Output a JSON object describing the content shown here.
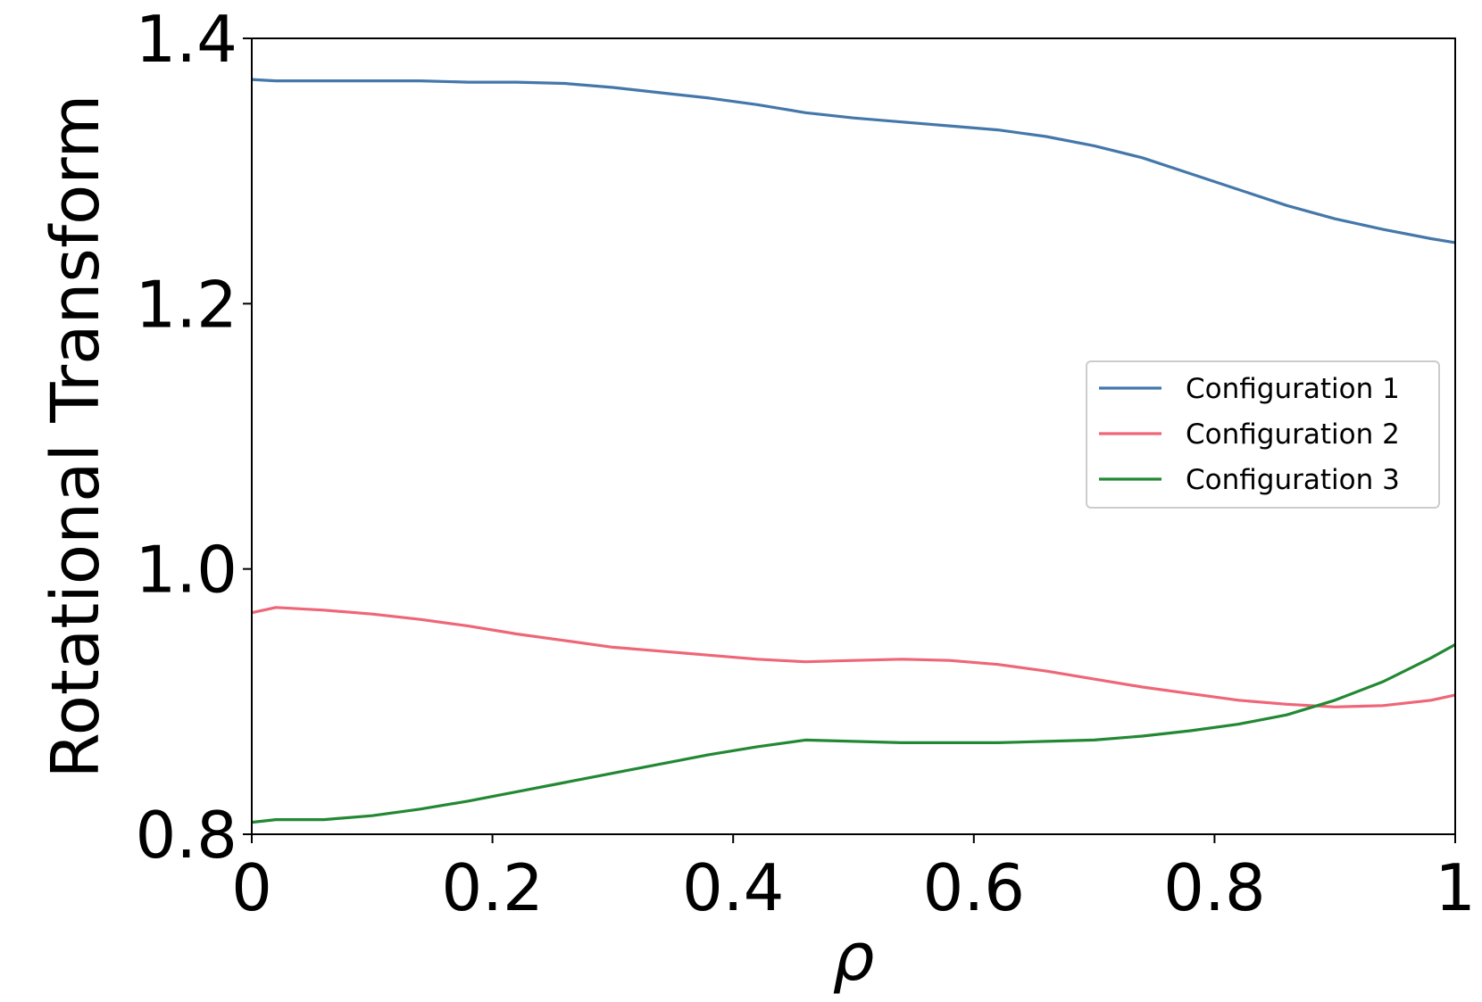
{
  "chart_data": {
    "type": "line",
    "xlabel": "ρ",
    "ylabel": "Rotational Transform",
    "xlim": [
      0,
      1
    ],
    "ylim": [
      0.8,
      1.4
    ],
    "xticks": [
      0,
      0.2,
      0.4,
      0.6,
      0.8,
      1
    ],
    "xtick_labels": [
      "0",
      "0.2",
      "0.4",
      "0.6",
      "0.8",
      "1"
    ],
    "yticks": [
      0.8,
      1.0,
      1.2,
      1.4
    ],
    "ytick_labels": [
      "0.8",
      "1.0",
      "1.2",
      "1.4"
    ],
    "legend_position": "center-right",
    "grid": false,
    "x": [
      0,
      0.02,
      0.06,
      0.1,
      0.14,
      0.18,
      0.22,
      0.26,
      0.3,
      0.34,
      0.38,
      0.42,
      0.46,
      0.5,
      0.54,
      0.58,
      0.62,
      0.66,
      0.7,
      0.74,
      0.78,
      0.82,
      0.86,
      0.9,
      0.94,
      0.98,
      1.0
    ],
    "series": [
      {
        "name": "Configuration 1",
        "color": "#4477aa",
        "values": [
          1.369,
          1.368,
          1.368,
          1.368,
          1.368,
          1.367,
          1.367,
          1.366,
          1.363,
          1.359,
          1.355,
          1.35,
          1.344,
          1.34,
          1.337,
          1.334,
          1.331,
          1.326,
          1.319,
          1.31,
          1.298,
          1.286,
          1.274,
          1.264,
          1.256,
          1.249,
          1.246
        ]
      },
      {
        "name": "Configuration 2",
        "color": "#ee6677",
        "values": [
          0.967,
          0.971,
          0.969,
          0.966,
          0.962,
          0.957,
          0.951,
          0.946,
          0.941,
          0.938,
          0.935,
          0.932,
          0.93,
          0.931,
          0.932,
          0.931,
          0.928,
          0.923,
          0.917,
          0.911,
          0.906,
          0.901,
          0.898,
          0.896,
          0.897,
          0.901,
          0.905
        ]
      },
      {
        "name": "Configuration 3",
        "color": "#228833",
        "values": [
          0.809,
          0.811,
          0.811,
          0.814,
          0.819,
          0.825,
          0.832,
          0.839,
          0.846,
          0.853,
          0.86,
          0.866,
          0.871,
          0.87,
          0.869,
          0.869,
          0.869,
          0.87,
          0.871,
          0.874,
          0.878,
          0.883,
          0.89,
          0.901,
          0.915,
          0.933,
          0.943
        ]
      }
    ]
  }
}
